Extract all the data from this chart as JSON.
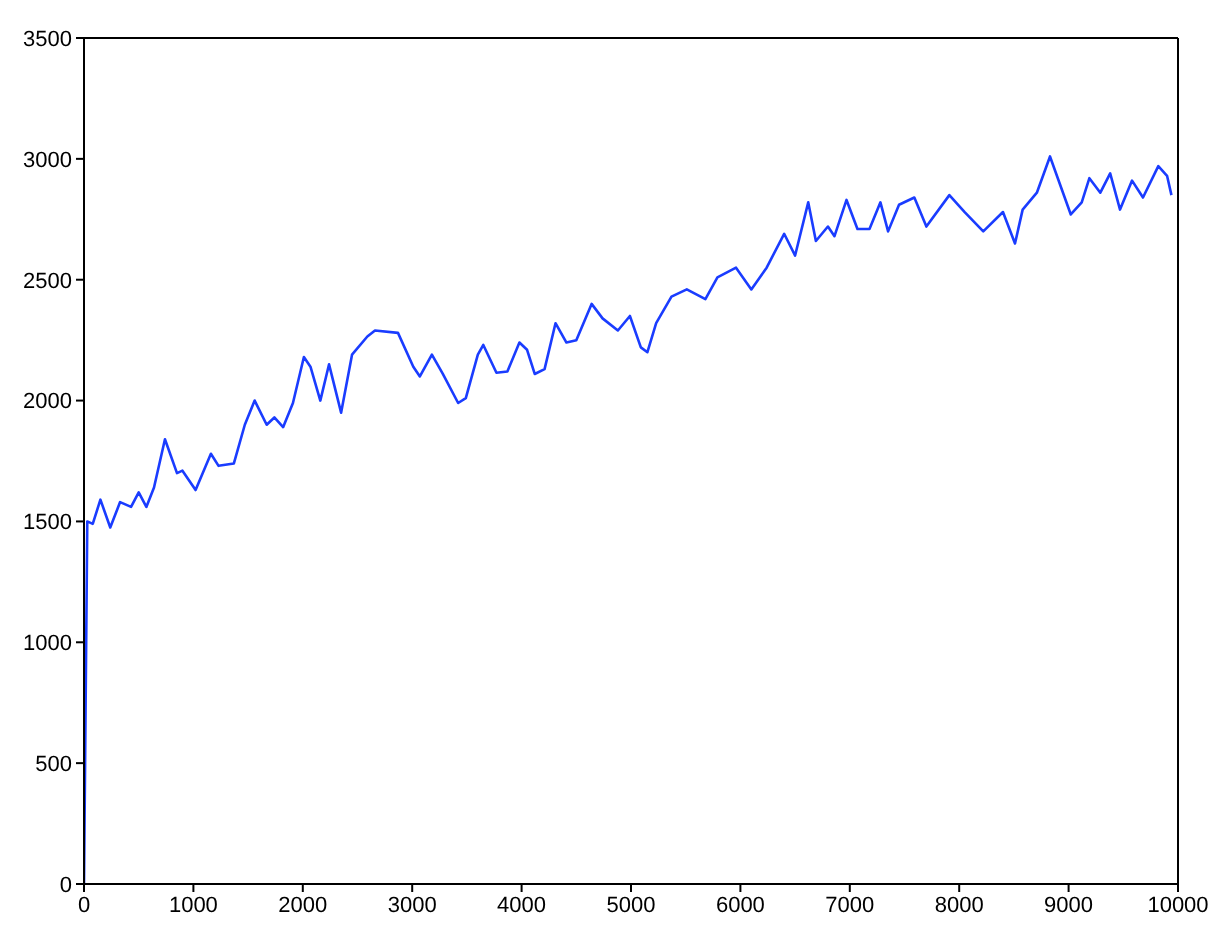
{
  "chart_data": {
    "type": "line",
    "xlim": [
      0,
      10000
    ],
    "ylim": [
      0,
      3500
    ],
    "xticks": [
      0,
      1000,
      2000,
      3000,
      4000,
      5000,
      6000,
      7000,
      8000,
      9000,
      10000
    ],
    "yticks": [
      0,
      500,
      1000,
      1500,
      2000,
      2500,
      3000,
      3500
    ],
    "grid": false,
    "legend": false,
    "marker": "none",
    "line_style": "solid",
    "series": [
      {
        "color": "#1a3cff",
        "x": [
          0,
          30,
          80,
          150,
          240,
          330,
          430,
          500,
          570,
          640,
          740,
          850,
          900,
          1020,
          1160,
          1230,
          1370,
          1470,
          1560,
          1670,
          1740,
          1820,
          1910,
          2010,
          2070,
          2160,
          2240,
          2350,
          2450,
          2590,
          2660,
          2870,
          3010,
          3070,
          3180,
          3280,
          3420,
          3490,
          3600,
          3650,
          3770,
          3870,
          3980,
          4050,
          4120,
          4210,
          4310,
          4410,
          4500,
          4640,
          4740,
          4880,
          4990,
          5090,
          5150,
          5230,
          5370,
          5510,
          5680,
          5790,
          5960,
          6100,
          6240,
          6400,
          6500,
          6620,
          6690,
          6800,
          6860,
          6970,
          7070,
          7180,
          7280,
          7350,
          7450,
          7590,
          7700,
          7910,
          8050,
          8220,
          8400,
          8510,
          8580,
          8710,
          8830,
          9020,
          9120,
          9190,
          9290,
          9380,
          9470,
          9580,
          9680,
          9820,
          9900,
          9940
        ],
        "values": [
          0,
          1500,
          1490,
          1590,
          1475,
          1580,
          1560,
          1620,
          1560,
          1640,
          1840,
          1700,
          1710,
          1630,
          1780,
          1730,
          1740,
          1900,
          2000,
          1900,
          1930,
          1890,
          1990,
          2180,
          2140,
          2000,
          2150,
          1950,
          2190,
          2265,
          2290,
          2280,
          2140,
          2100,
          2190,
          2110,
          1990,
          2010,
          2190,
          2230,
          2115,
          2120,
          2240,
          2210,
          2110,
          2130,
          2320,
          2240,
          2250,
          2400,
          2340,
          2290,
          2350,
          2220,
          2200,
          2320,
          2430,
          2460,
          2420,
          2510,
          2550,
          2460,
          2550,
          2690,
          2600,
          2820,
          2660,
          2720,
          2680,
          2830,
          2710,
          2710,
          2820,
          2700,
          2810,
          2840,
          2720,
          2850,
          2780,
          2700,
          2780,
          2650,
          2790,
          2860,
          3010,
          2770,
          2820,
          2920,
          2860,
          2940,
          2790,
          2910,
          2840,
          2970,
          2930,
          2850
        ]
      }
    ]
  }
}
